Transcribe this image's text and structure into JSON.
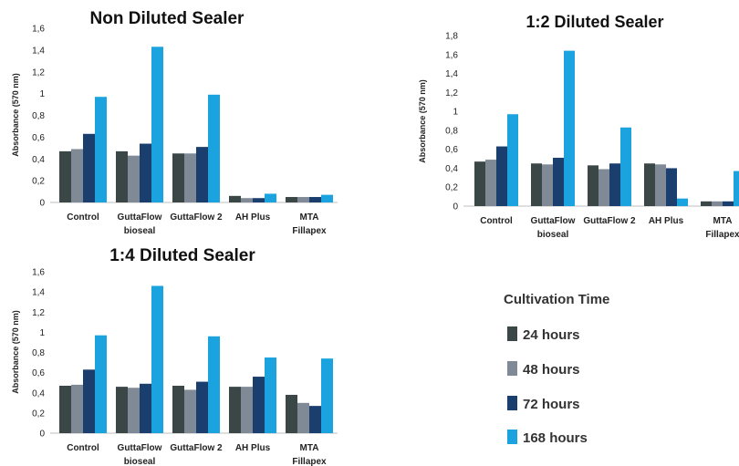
{
  "chart_data": [
    {
      "type": "bar",
      "title": "Non Diluted Sealer",
      "ylabel": "Absorbance (570 nm)",
      "ylim": [
        0,
        1.6
      ],
      "yticks": [
        "0",
        "0,2",
        "0,4",
        "0,6",
        "0,8",
        "1",
        "1,2",
        "1,4",
        "1,6"
      ],
      "categories": [
        [
          "Control"
        ],
        [
          "GuttaFlow",
          "bioseal"
        ],
        [
          "GuttaFlow 2"
        ],
        [
          "AH Plus"
        ],
        [
          "MTA",
          "Fillapex"
        ]
      ],
      "series": [
        {
          "name": "24 hours",
          "color": "#3b4647",
          "values": [
            0.47,
            0.47,
            0.45,
            0.06,
            0.05
          ]
        },
        {
          "name": "48 hours",
          "color": "#7f8a96",
          "values": [
            0.49,
            0.43,
            0.45,
            0.04,
            0.05
          ]
        },
        {
          "name": "72 hours",
          "color": "#1a3f6e",
          "values": [
            0.63,
            0.54,
            0.51,
            0.04,
            0.05
          ]
        },
        {
          "name": "168 hours",
          "color": "#1ba3e0",
          "values": [
            0.97,
            1.43,
            0.99,
            0.08,
            0.07
          ]
        }
      ],
      "grid": false,
      "legend": "right"
    },
    {
      "type": "bar",
      "title": "1:2 Diluted Sealer",
      "ylabel": "Absorbance (570 nm)",
      "ylim": [
        0,
        1.8
      ],
      "yticks": [
        "0",
        "0,2",
        "0,4",
        "0,6",
        "0,8",
        "1",
        "1,2",
        "1,4",
        "1,6",
        "1,8"
      ],
      "categories": [
        [
          "Control"
        ],
        [
          "GuttaFlow",
          "bioseal"
        ],
        [
          "GuttaFlow 2"
        ],
        [
          "AH Plus"
        ],
        [
          "MTA",
          "Fillapex"
        ]
      ],
      "series": [
        {
          "name": "24 hours",
          "color": "#3b4647",
          "values": [
            0.47,
            0.45,
            0.43,
            0.45,
            0.05
          ]
        },
        {
          "name": "48 hours",
          "color": "#7f8a96",
          "values": [
            0.49,
            0.44,
            0.39,
            0.44,
            0.05
          ]
        },
        {
          "name": "72 hours",
          "color": "#1a3f6e",
          "values": [
            0.63,
            0.51,
            0.45,
            0.4,
            0.05
          ]
        },
        {
          "name": "168 hours",
          "color": "#1ba3e0",
          "values": [
            0.97,
            1.64,
            0.83,
            0.08,
            0.37
          ]
        }
      ],
      "grid": false,
      "legend": "right"
    },
    {
      "type": "bar",
      "title": "1:4 Diluted Sealer",
      "ylabel": "Absorbance (570 nm)",
      "ylim": [
        0,
        1.6
      ],
      "yticks": [
        "0",
        "0,2",
        "0,4",
        "0,6",
        "0,8",
        "1",
        "1,2",
        "1,4",
        "1,6"
      ],
      "categories": [
        [
          "Control"
        ],
        [
          "GuttaFlow",
          "bioseal"
        ],
        [
          "GuttaFlow 2"
        ],
        [
          "AH Plus"
        ],
        [
          "MTA",
          "Fillapex"
        ]
      ],
      "series": [
        {
          "name": "24 hours",
          "color": "#3b4647",
          "values": [
            0.47,
            0.46,
            0.47,
            0.46,
            0.38
          ]
        },
        {
          "name": "48 hours",
          "color": "#7f8a96",
          "values": [
            0.48,
            0.45,
            0.43,
            0.46,
            0.3
          ]
        },
        {
          "name": "72 hours",
          "color": "#1a3f6e",
          "values": [
            0.63,
            0.49,
            0.51,
            0.56,
            0.27
          ]
        },
        {
          "name": "168 hours",
          "color": "#1ba3e0",
          "values": [
            0.97,
            1.46,
            0.96,
            0.75,
            0.74
          ]
        }
      ],
      "grid": false,
      "legend": "right"
    }
  ],
  "legend": {
    "title": "Cultivation Time",
    "items": [
      {
        "label": "24 hours",
        "color": "#3b4647"
      },
      {
        "label": "48 hours",
        "color": "#7f8a96"
      },
      {
        "label": "72 hours",
        "color": "#1a3f6e"
      },
      {
        "label": "168 hours",
        "color": "#1ba3e0"
      }
    ]
  }
}
